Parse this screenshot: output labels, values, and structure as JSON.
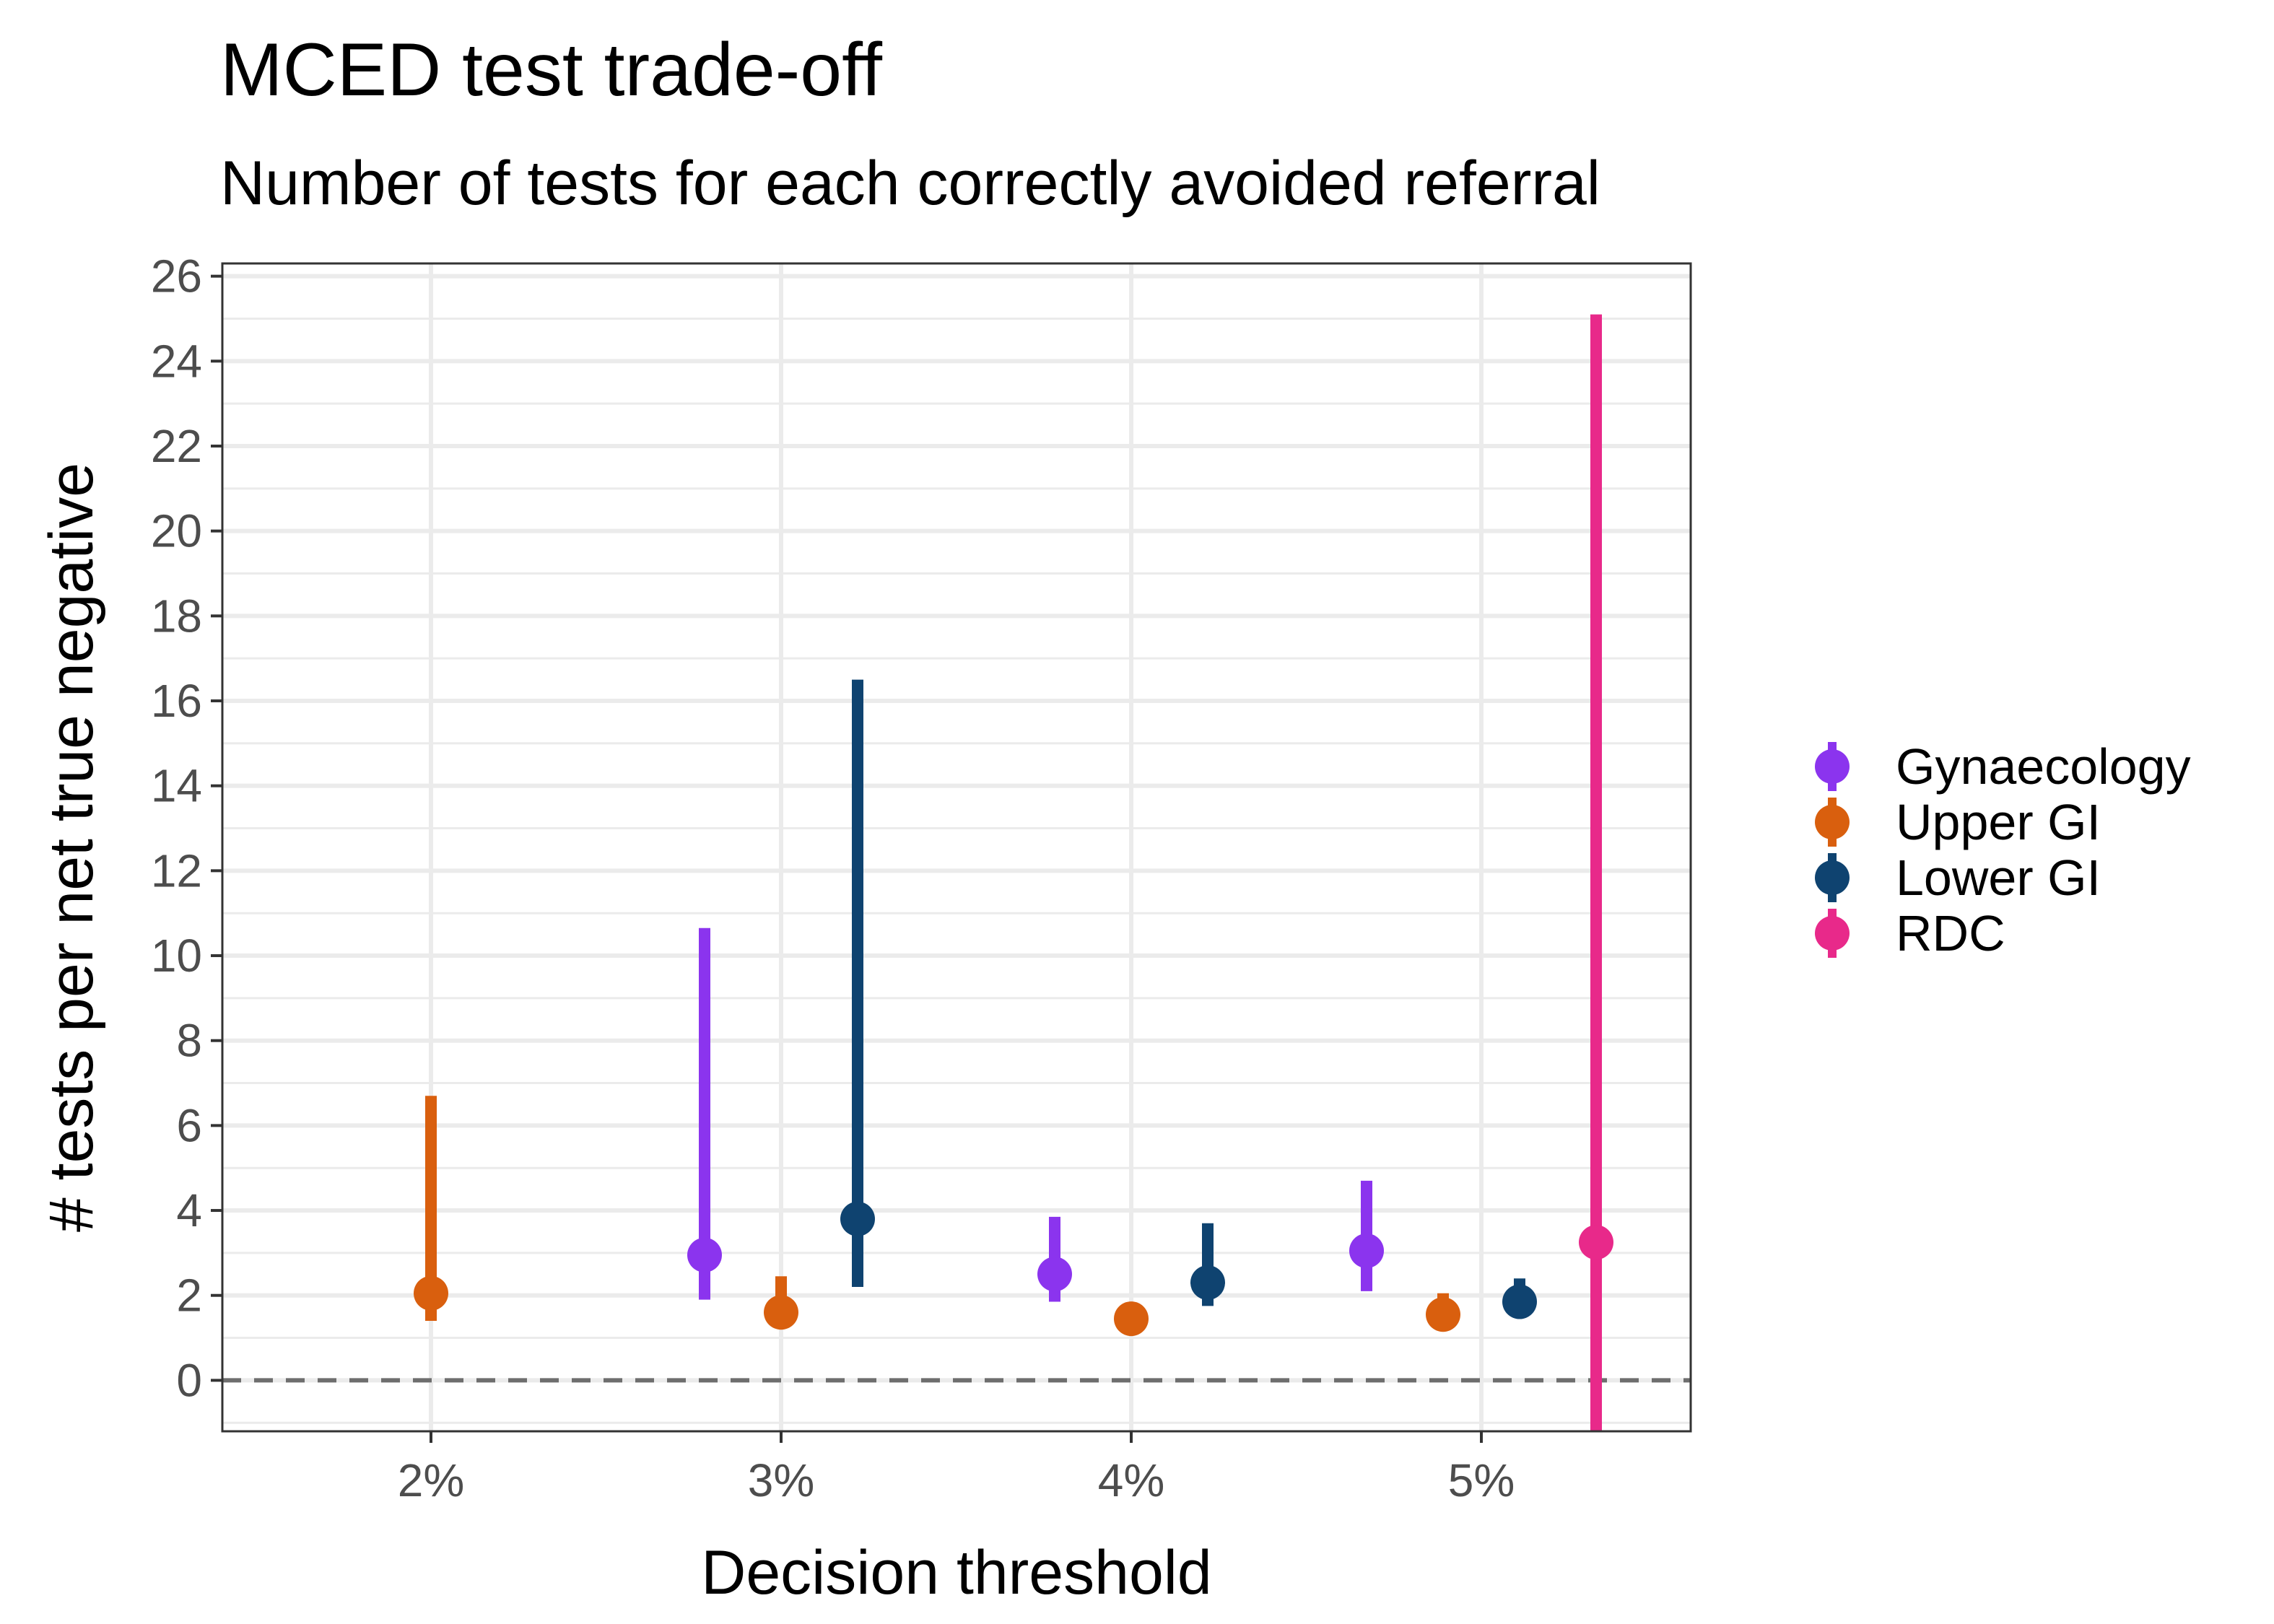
{
  "chart_data": {
    "type": "scatter",
    "title": "MCED test trade-off",
    "subtitle": "Number of tests for each correctly avoided referral",
    "xlabel": "Decision threshold",
    "ylabel": "# tests per net true negative",
    "x_categories": [
      "2%",
      "3%",
      "4%",
      "5%"
    ],
    "y_ticks": [
      0,
      2,
      4,
      6,
      8,
      10,
      12,
      14,
      16,
      18,
      20,
      22,
      24,
      26
    ],
    "ylim": [
      -1.2,
      26.3
    ],
    "grid": true,
    "reference_line": {
      "y": 0,
      "style": "dashed"
    },
    "legend_position": "right",
    "series": [
      {
        "name": "Gynaecology",
        "color": "#8B34EE",
        "points": [
          {
            "x": "3%",
            "y": 2.95,
            "low": 1.9,
            "high": 10.65
          },
          {
            "x": "4%",
            "y": 2.5,
            "low": 1.85,
            "high": 3.85
          },
          {
            "x": "5%",
            "y": 3.05,
            "low": 2.1,
            "high": 4.7
          }
        ]
      },
      {
        "name": "Upper GI",
        "color": "#D95F0E",
        "points": [
          {
            "x": "2%",
            "y": 2.05,
            "low": 1.4,
            "high": 6.7
          },
          {
            "x": "3%",
            "y": 1.6,
            "low": 1.3,
            "high": 2.45
          },
          {
            "x": "4%",
            "y": 1.45,
            "low": 1.2,
            "high": 1.75
          },
          {
            "x": "5%",
            "y": 1.55,
            "low": 1.25,
            "high": 2.05
          }
        ]
      },
      {
        "name": "Lower GI",
        "color": "#0F4370",
        "points": [
          {
            "x": "3%",
            "y": 3.8,
            "low": 2.2,
            "high": 16.5
          },
          {
            "x": "4%",
            "y": 2.3,
            "low": 1.75,
            "high": 3.7
          },
          {
            "x": "5%",
            "y": 1.85,
            "low": 1.5,
            "high": 2.4
          }
        ]
      },
      {
        "name": "RDC",
        "color": "#E8298A",
        "points": [
          {
            "x": "5%",
            "y": 3.25,
            "low": -1.2,
            "high": 25.1
          }
        ]
      }
    ]
  }
}
